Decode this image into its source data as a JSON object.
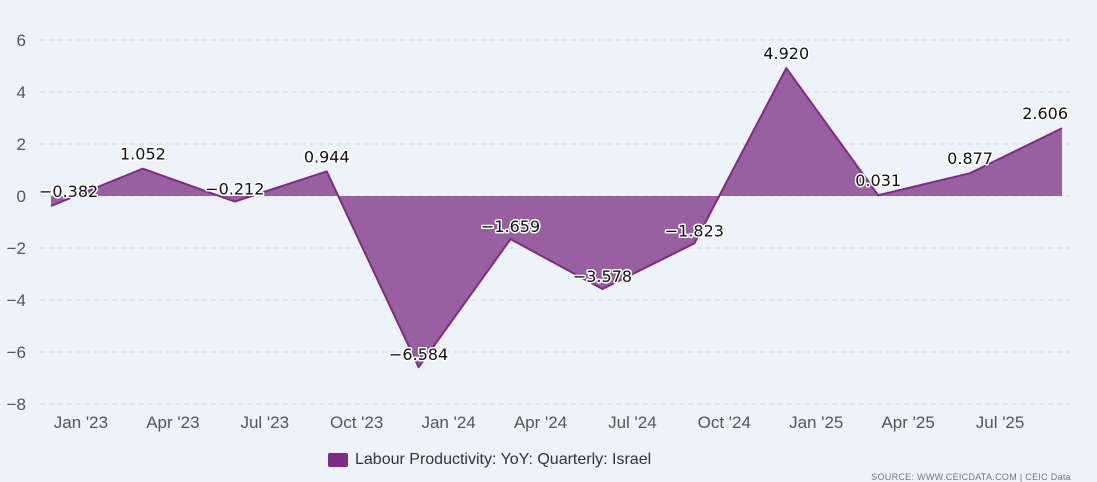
{
  "chart_data": {
    "type": "area",
    "x": [
      "Dec '22",
      "Mar '23",
      "Jun '23",
      "Sep '23",
      "Dec '23",
      "Mar '24",
      "Jun '24",
      "Sep '24",
      "Dec '24",
      "Mar '25",
      "Jun '25",
      "Sep '25"
    ],
    "xtick_labels": [
      "Jan '23",
      "Apr '23",
      "Jul '23",
      "Oct '23",
      "Jan '24",
      "Apr '24",
      "Jul '24",
      "Oct '24",
      "Jan '25",
      "Apr '25",
      "Jul '25"
    ],
    "yticks": [
      6,
      4,
      2,
      0,
      -2,
      -4,
      -6,
      -8
    ],
    "ylim": [
      -8,
      6
    ],
    "grid": true,
    "legend_position": "bottom",
    "series": [
      {
        "name": "Labour Productivity: YoY: Quarterly: Israel",
        "values": [
          -0.382,
          1.052,
          -0.212,
          0.944,
          -6.584,
          -1.659,
          -3.578,
          -1.823,
          4.92,
          0.031,
          0.877,
          2.606
        ],
        "labels": [
          "-0.382",
          "1.052",
          "-0.212",
          "0.944",
          "-6.584",
          "-1.659",
          "-3.578",
          "-1.823",
          "4.920",
          "0.031",
          "0.877",
          "2.606"
        ],
        "color": "#7b2d83"
      }
    ]
  },
  "source_text": "SOURCE: WWW.CEICDATA.COM | CEIC Data"
}
